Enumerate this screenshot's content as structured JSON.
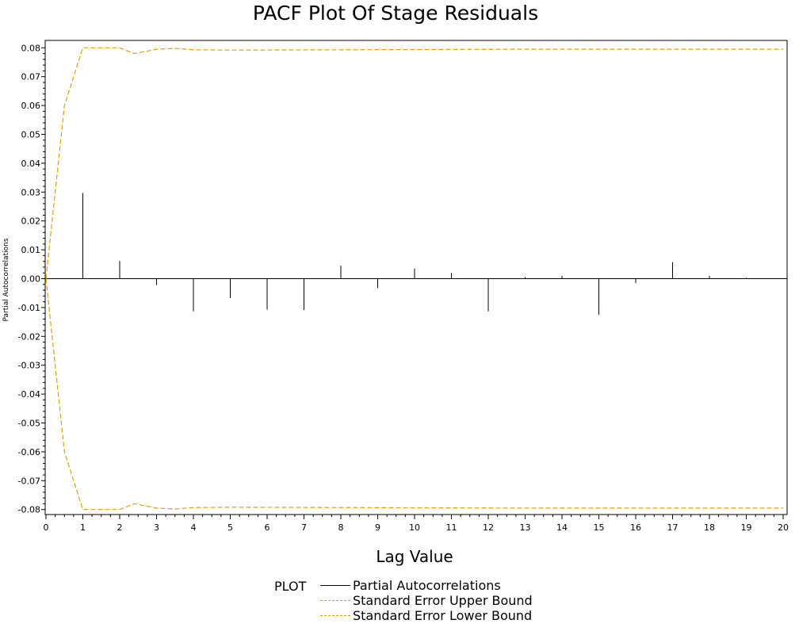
{
  "chart_data": {
    "type": "bar",
    "title": "PACF Plot Of Stage Residuals",
    "xlabel": "Lag Value",
    "ylabel": "Partial Autocorrelations",
    "xlim": [
      0,
      20
    ],
    "ylim": [
      -0.082,
      0.082
    ],
    "x_ticks": [
      "0",
      "1",
      "2",
      "3",
      "4",
      "5",
      "6",
      "7",
      "8",
      "9",
      "10",
      "11",
      "12",
      "13",
      "14",
      "15",
      "16",
      "17",
      "18",
      "19",
      "20"
    ],
    "y_ticks": [
      "0.08",
      "0.07",
      "0.06",
      "0.05",
      "0.04",
      "0.03",
      "0.02",
      "0.01",
      "0.00",
      "-0.01",
      "-0.02",
      "-0.03",
      "-0.04",
      "-0.05",
      "-0.06",
      "-0.07",
      "-0.08"
    ],
    "series": [
      {
        "name": "Partial Autocorrelations",
        "x": [
          1,
          2,
          3,
          4,
          5,
          6,
          7,
          8,
          9,
          10,
          11,
          12,
          13,
          14,
          15,
          16,
          17,
          18,
          19
        ],
        "values": [
          0.0297,
          0.0061,
          -0.0022,
          -0.0113,
          -0.0067,
          -0.0107,
          -0.0109,
          0.0045,
          -0.0033,
          0.0035,
          0.002,
          -0.0113,
          0.0005,
          0.001,
          -0.0125,
          -0.0015,
          0.0057,
          0.001,
          0.0003
        ]
      },
      {
        "name": "Standard Error Upper Bound",
        "x": [
          0,
          0.5,
          1,
          2,
          2.4,
          3,
          3.5,
          4,
          5,
          13,
          20
        ],
        "values": [
          0.0,
          0.06,
          0.08,
          0.08,
          0.078,
          0.0795,
          0.0798,
          0.0793,
          0.0792,
          0.0795,
          0.0795
        ]
      },
      {
        "name": "Standard Error Lower Bound",
        "x": [
          0,
          0.5,
          1,
          2,
          2.4,
          3,
          3.5,
          4,
          5,
          13,
          20
        ],
        "values": [
          0.0,
          -0.06,
          -0.08,
          -0.08,
          -0.078,
          -0.0795,
          -0.0798,
          -0.0793,
          -0.0792,
          -0.0795,
          -0.0795
        ]
      }
    ],
    "legend": {
      "title": "PLOT",
      "items": [
        "Partial Autocorrelations",
        "Standard Error Upper Bound",
        "Standard Error Lower Bound"
      ],
      "placement": "bottom"
    },
    "colors": {
      "bars": "#000000",
      "bounds": "#e0a000"
    }
  }
}
